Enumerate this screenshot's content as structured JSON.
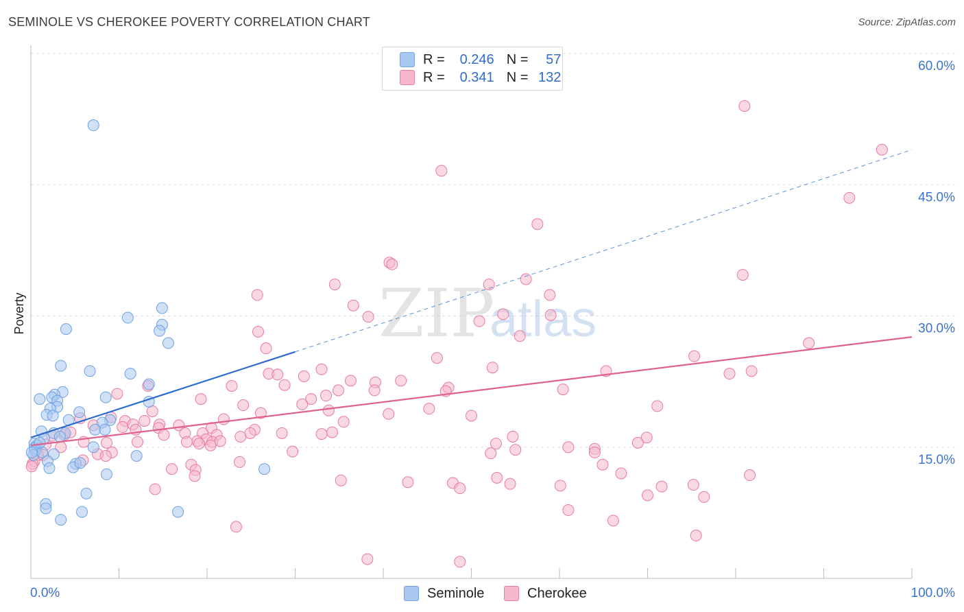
{
  "header": {
    "title": "SEMINOLE VS CHEROKEE POVERTY CORRELATION CHART",
    "source": "Source: ZipAtlas.com"
  },
  "watermark": {
    "zip": "ZIP",
    "atlas": "atlas"
  },
  "stats": [
    {
      "r_label": "R =",
      "r_value": "0.246",
      "n_label": "N =",
      "n_value": "57",
      "color": "#a9c8f0"
    },
    {
      "r_label": "R =",
      "r_value": "0.341",
      "n_label": "N =",
      "n_value": "132",
      "color": "#f6b8cb"
    }
  ],
  "legend": [
    {
      "name": "Seminole",
      "color": "#a9c8f0"
    },
    {
      "name": "Cherokee",
      "color": "#f6b8cb"
    }
  ],
  "chart_data": {
    "type": "scatter",
    "title": "SEMINOLE VS CHEROKEE POVERTY CORRELATION CHART",
    "xlabel": "",
    "ylabel": "Poverty",
    "xlim": [
      0,
      100
    ],
    "ylim": [
      0,
      60
    ],
    "x_tick_labels": [
      "0.0%",
      "100.0%"
    ],
    "y_ticks": [
      15,
      30,
      45,
      60
    ],
    "y_tick_labels": [
      "15.0%",
      "30.0%",
      "45.0%",
      "60.0%"
    ],
    "grid": true,
    "legend_position": "bottom-center",
    "series": [
      {
        "name": "Seminole",
        "color": "#6fa0e0",
        "fill": "#a9c8f0",
        "trend": {
          "x": [
            0,
            30
          ],
          "y": [
            16.1,
            25.9
          ],
          "extended_to": [
            100,
            49.0
          ]
        },
        "points": [
          [
            7.1,
            51.8
          ],
          [
            4.0,
            28.5
          ],
          [
            14.9,
            30.9
          ],
          [
            11.0,
            29.8
          ],
          [
            14.9,
            29.0
          ],
          [
            14.6,
            28.3
          ],
          [
            15.6,
            26.9
          ],
          [
            3.4,
            24.3
          ],
          [
            6.7,
            23.7
          ],
          [
            11.3,
            23.4
          ],
          [
            13.4,
            22.2
          ],
          [
            13.4,
            20.2
          ],
          [
            3.6,
            21.3
          ],
          [
            2.7,
            21.0
          ],
          [
            2.4,
            20.7
          ],
          [
            1.0,
            20.5
          ],
          [
            8.5,
            20.7
          ],
          [
            3.0,
            20.3
          ],
          [
            3.0,
            19.6
          ],
          [
            2.2,
            19.4
          ],
          [
            5.5,
            19.0
          ],
          [
            1.8,
            18.7
          ],
          [
            2.5,
            18.6
          ],
          [
            4.3,
            18.1
          ],
          [
            9.0,
            18.1
          ],
          [
            8.1,
            17.8
          ],
          [
            7.3,
            17.0
          ],
          [
            8.4,
            17.0
          ],
          [
            1.2,
            16.8
          ],
          [
            2.6,
            16.6
          ],
          [
            3.9,
            16.6
          ],
          [
            3.3,
            16.2
          ],
          [
            1.5,
            16.0
          ],
          [
            0.4,
            15.4
          ],
          [
            0.7,
            15.2
          ],
          [
            0.4,
            14.9
          ],
          [
            0.5,
            14.6
          ],
          [
            0.3,
            14.1
          ],
          [
            2.6,
            14.2
          ],
          [
            1.3,
            14.4
          ],
          [
            7.1,
            15.0
          ],
          [
            5.1,
            13.1
          ],
          [
            1.9,
            13.4
          ],
          [
            4.8,
            12.7
          ],
          [
            2.1,
            12.6
          ],
          [
            5.6,
            13.2
          ],
          [
            8.6,
            11.9
          ],
          [
            12.0,
            14.0
          ],
          [
            26.5,
            12.5
          ],
          [
            6.3,
            9.7
          ],
          [
            1.7,
            8.5
          ],
          [
            1.7,
            8.0
          ],
          [
            5.8,
            7.6
          ],
          [
            16.7,
            7.6
          ],
          [
            3.4,
            6.7
          ],
          [
            0.1,
            14.4
          ],
          [
            1.0,
            15.5
          ]
        ]
      },
      {
        "name": "Cherokee",
        "color": "#e77aa0",
        "fill": "#f6b8cb",
        "trend": {
          "x": [
            0,
            100
          ],
          "y": [
            15.2,
            27.6
          ]
        },
        "points": [
          [
            81.0,
            54.0
          ],
          [
            96.6,
            49.0
          ],
          [
            46.6,
            46.6
          ],
          [
            92.9,
            43.5
          ],
          [
            57.5,
            40.5
          ],
          [
            40.7,
            36.1
          ],
          [
            41.0,
            35.9
          ],
          [
            80.8,
            34.7
          ],
          [
            56.2,
            34.2
          ],
          [
            34.5,
            33.6
          ],
          [
            52.0,
            33.6
          ],
          [
            25.7,
            32.4
          ],
          [
            58.9,
            32.4
          ],
          [
            36.6,
            31.2
          ],
          [
            53.6,
            30.2
          ],
          [
            59.0,
            30.1
          ],
          [
            38.3,
            29.9
          ],
          [
            50.9,
            29.4
          ],
          [
            25.8,
            28.2
          ],
          [
            55.5,
            27.7
          ],
          [
            88.3,
            26.9
          ],
          [
            26.7,
            26.3
          ],
          [
            75.3,
            25.4
          ],
          [
            46.1,
            25.2
          ],
          [
            52.4,
            24.1
          ],
          [
            33.0,
            23.9
          ],
          [
            81.8,
            23.7
          ],
          [
            65.3,
            23.7
          ],
          [
            79.3,
            23.4
          ],
          [
            27.0,
            23.4
          ],
          [
            28.0,
            23.3
          ],
          [
            31.0,
            23.1
          ],
          [
            36.3,
            22.6
          ],
          [
            39.1,
            22.4
          ],
          [
            42.0,
            22.6
          ],
          [
            28.8,
            22.1
          ],
          [
            13.3,
            22.0
          ],
          [
            22.8,
            22.0
          ],
          [
            47.4,
            21.8
          ],
          [
            60.4,
            21.6
          ],
          [
            39.0,
            21.5
          ],
          [
            34.9,
            21.5
          ],
          [
            47.1,
            21.4
          ],
          [
            9.8,
            21.1
          ],
          [
            19.3,
            20.5
          ],
          [
            33.5,
            20.9
          ],
          [
            31.8,
            20.5
          ],
          [
            30.8,
            19.9
          ],
          [
            24.1,
            19.8
          ],
          [
            71.1,
            19.7
          ],
          [
            45.2,
            19.4
          ],
          [
            13.8,
            19.1
          ],
          [
            33.8,
            19.2
          ],
          [
            26.1,
            18.9
          ],
          [
            40.6,
            18.8
          ],
          [
            50.0,
            18.6
          ],
          [
            5.6,
            18.3
          ],
          [
            9.1,
            18.4
          ],
          [
            21.9,
            18.2
          ],
          [
            35.5,
            17.9
          ],
          [
            10.7,
            18.0
          ],
          [
            12.9,
            18.0
          ],
          [
            7.1,
            17.5
          ],
          [
            14.6,
            17.6
          ],
          [
            16.8,
            17.5
          ],
          [
            11.6,
            17.6
          ],
          [
            10.4,
            17.3
          ],
          [
            20.5,
            17.2
          ],
          [
            25.4,
            17.0
          ],
          [
            11.9,
            17.0
          ],
          [
            14.5,
            17.2
          ],
          [
            24.9,
            16.6
          ],
          [
            19.5,
            16.6
          ],
          [
            28.5,
            16.6
          ],
          [
            17.5,
            16.6
          ],
          [
            34.2,
            16.7
          ],
          [
            33.0,
            16.5
          ],
          [
            15.1,
            16.4
          ],
          [
            21.1,
            16.4
          ],
          [
            23.8,
            16.2
          ],
          [
            54.7,
            16.2
          ],
          [
            69.9,
            16.1
          ],
          [
            68.9,
            15.5
          ],
          [
            3.8,
            16.4
          ],
          [
            4.5,
            16.7
          ],
          [
            2.4,
            16.3
          ],
          [
            19.9,
            15.9
          ],
          [
            18.9,
            15.7
          ],
          [
            17.7,
            15.6
          ],
          [
            20.6,
            15.6
          ],
          [
            6.0,
            15.6
          ],
          [
            8.6,
            15.5
          ],
          [
            21.5,
            15.7
          ],
          [
            12.1,
            15.6
          ],
          [
            19.1,
            15.4
          ],
          [
            20.4,
            15.2
          ],
          [
            1.7,
            15.3
          ],
          [
            3.4,
            15.0
          ],
          [
            52.8,
            15.4
          ],
          [
            61.0,
            15.0
          ],
          [
            55.0,
            14.7
          ],
          [
            64.0,
            14.8
          ],
          [
            29.7,
            14.5
          ],
          [
            9.2,
            14.4
          ],
          [
            7.6,
            14.2
          ],
          [
            1.4,
            14.1
          ],
          [
            0.8,
            14.1
          ],
          [
            8.5,
            14.0
          ],
          [
            52.2,
            14.3
          ],
          [
            64.0,
            14.4
          ],
          [
            5.9,
            13.5
          ],
          [
            0.4,
            13.4
          ],
          [
            0.2,
            13.1
          ],
          [
            0.1,
            12.8
          ],
          [
            18.2,
            13.0
          ],
          [
            23.7,
            13.3
          ],
          [
            64.9,
            13.0
          ],
          [
            18.7,
            12.4
          ],
          [
            16.0,
            12.5
          ],
          [
            18.6,
            11.7
          ],
          [
            52.9,
            11.5
          ],
          [
            67.0,
            12.0
          ],
          [
            81.6,
            11.8
          ],
          [
            35.2,
            11.2
          ],
          [
            42.8,
            11.0
          ],
          [
            47.9,
            10.9
          ],
          [
            54.4,
            10.8
          ],
          [
            60.1,
            10.6
          ],
          [
            48.7,
            10.3
          ],
          [
            71.6,
            10.5
          ],
          [
            14.1,
            10.2
          ],
          [
            75.2,
            10.7
          ],
          [
            70.0,
            9.5
          ],
          [
            76.4,
            9.3
          ],
          [
            61.0,
            7.8
          ],
          [
            66.1,
            6.6
          ],
          [
            75.5,
            4.9
          ],
          [
            23.3,
            5.9
          ],
          [
            38.2,
            2.2
          ],
          [
            48.7,
            1.9
          ]
        ]
      }
    ]
  }
}
